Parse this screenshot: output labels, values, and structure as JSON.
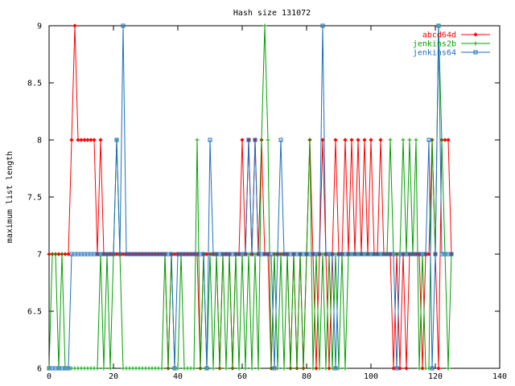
{
  "chart_data": {
    "type": "line",
    "title": "Hash size 131072",
    "xlabel": "",
    "ylabel": "maximum list length",
    "xlim": [
      0,
      140
    ],
    "ylim": [
      6,
      9
    ],
    "x_ticks": [
      "0",
      "20",
      "40",
      "60",
      "80",
      "100",
      "120",
      "140"
    ],
    "y_ticks": [
      "6",
      "6.5",
      "7",
      "7.5",
      "8",
      "8.5",
      "9"
    ],
    "grid": false,
    "legend_position": "top-right",
    "x": [
      0,
      1,
      2,
      3,
      4,
      5,
      6,
      7,
      8,
      9,
      10,
      11,
      12,
      13,
      14,
      15,
      16,
      17,
      18,
      19,
      20,
      21,
      22,
      23,
      24,
      25,
      26,
      27,
      28,
      29,
      30,
      31,
      32,
      33,
      34,
      35,
      36,
      37,
      38,
      39,
      40,
      41,
      42,
      43,
      44,
      45,
      46,
      47,
      48,
      49,
      50,
      51,
      52,
      53,
      54,
      55,
      56,
      57,
      58,
      59,
      60,
      61,
      62,
      63,
      64,
      65,
      66,
      67,
      68,
      69,
      70,
      71,
      72,
      73,
      74,
      75,
      76,
      77,
      78,
      79,
      80,
      81,
      82,
      83,
      84,
      85,
      86,
      87,
      88,
      89,
      90,
      91,
      92,
      93,
      94,
      95,
      96,
      97,
      98,
      99,
      100,
      101,
      102,
      103,
      104,
      105,
      106,
      107,
      108,
      109,
      110,
      111,
      112,
      113,
      114,
      115,
      116,
      117,
      118,
      119,
      120,
      121,
      122,
      123,
      124,
      125
    ],
    "series": [
      {
        "name": "abcd64d",
        "color": "#ff0000",
        "marker": "diamond",
        "values": [
          7,
          7,
          7,
          7,
          7,
          7,
          7,
          8,
          9,
          8,
          8,
          8,
          8,
          8,
          8,
          7,
          8,
          7,
          7,
          7,
          7,
          7,
          7,
          7,
          7,
          7,
          7,
          7,
          7,
          7,
          7,
          7,
          7,
          7,
          7,
          7,
          7,
          6,
          7,
          7,
          7,
          7,
          7,
          7,
          7,
          7,
          7,
          6,
          7,
          7,
          7,
          7,
          7,
          6,
          7,
          7,
          7,
          6,
          7,
          7,
          8,
          7,
          8,
          7,
          8,
          7,
          8,
          7,
          7,
          6,
          7,
          7,
          7,
          7,
          7,
          6,
          7,
          6,
          7,
          6,
          7,
          8,
          7,
          6,
          7,
          8,
          7,
          6,
          7,
          8,
          7,
          7,
          8,
          7,
          8,
          7,
          8,
          7,
          8,
          7,
          8,
          7,
          7,
          8,
          7,
          7,
          7,
          6,
          7,
          6,
          7,
          6,
          7,
          7,
          7,
          7,
          6,
          7,
          7,
          8,
          7,
          6,
          8,
          8,
          8,
          7
        ]
      },
      {
        "name": "jenkins2b",
        "color": "#00a000",
        "marker": "plus",
        "values": [
          6,
          7,
          7,
          6,
          7,
          6,
          6,
          6,
          6,
          6,
          6,
          6,
          6,
          6,
          6,
          6,
          7,
          6,
          7,
          6,
          7,
          8,
          7,
          6,
          6,
          6,
          6,
          6,
          6,
          6,
          6,
          6,
          6,
          6,
          6,
          6,
          7,
          6,
          7,
          6,
          6,
          7,
          6,
          6,
          6,
          6,
          8,
          6,
          7,
          6,
          7,
          6,
          7,
          6,
          7,
          6,
          7,
          6,
          7,
          6,
          7,
          6,
          7,
          6,
          7,
          6,
          8,
          9,
          8,
          6,
          7,
          6,
          7,
          6,
          7,
          6,
          7,
          6,
          7,
          6,
          7,
          8,
          6,
          7,
          6,
          7,
          6,
          7,
          6,
          7,
          6,
          7,
          6,
          7,
          7,
          7,
          7,
          7,
          7,
          7,
          7,
          7,
          7,
          7,
          7,
          7,
          8,
          7,
          7,
          7,
          8,
          7,
          8,
          7,
          8,
          6,
          7,
          6,
          6,
          8,
          7,
          9,
          8,
          7,
          6,
          7
        ]
      },
      {
        "name": "jenkins64",
        "color": "#1e6ebe",
        "marker": "square",
        "values": [
          6,
          6,
          6,
          6,
          6,
          6,
          6,
          7,
          7,
          7,
          7,
          7,
          7,
          7,
          7,
          7,
          7,
          7,
          7,
          7,
          7,
          8,
          7,
          9,
          7,
          7,
          7,
          7,
          7,
          7,
          7,
          7,
          7,
          7,
          7,
          7,
          7,
          7,
          7,
          6,
          7,
          7,
          7,
          7,
          7,
          7,
          7,
          7,
          7,
          6,
          8,
          7,
          7,
          7,
          7,
          7,
          7,
          7,
          7,
          7,
          7,
          7,
          8,
          7,
          8,
          7,
          7,
          7,
          7,
          7,
          6,
          7,
          8,
          7,
          7,
          7,
          7,
          7,
          7,
          7,
          7,
          7,
          7,
          7,
          7,
          9,
          7,
          7,
          7,
          6,
          7,
          7,
          7,
          7,
          7,
          7,
          7,
          7,
          7,
          7,
          7,
          7,
          7,
          7,
          7,
          7,
          7,
          7,
          6,
          7,
          7,
          7,
          7,
          7,
          7,
          7,
          7,
          7,
          8,
          6,
          7,
          9,
          7,
          7,
          7,
          7
        ]
      }
    ]
  }
}
